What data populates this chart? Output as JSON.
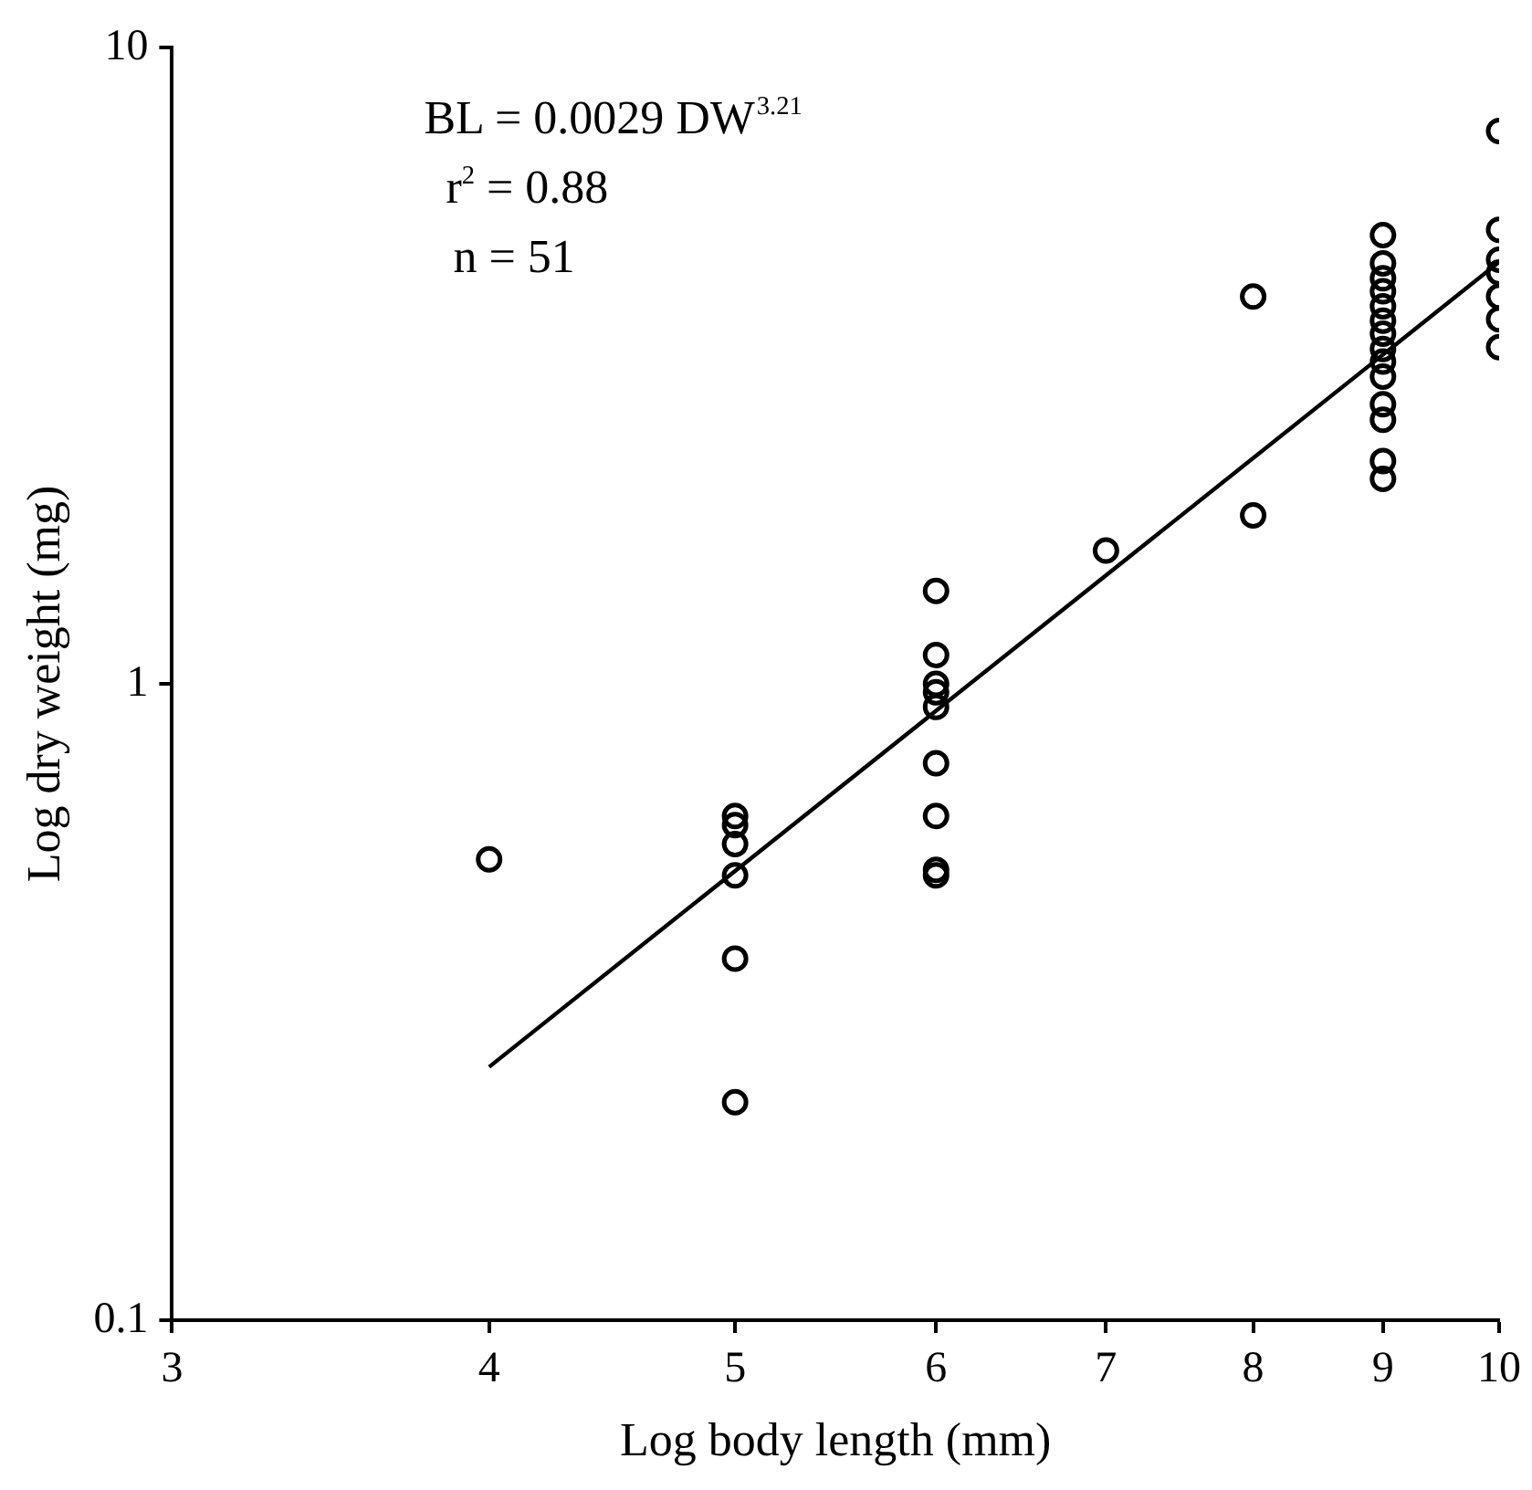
{
  "chart_data": {
    "type": "scatter",
    "xlabel": "Log body length (mm)",
    "ylabel": "Log dry weight (mg)",
    "log": "xy",
    "xlim": [
      3,
      10
    ],
    "xticks": [
      3,
      4,
      5,
      6,
      7,
      8,
      9,
      10
    ],
    "ylim": [
      0.1,
      10
    ],
    "yticks": [
      0.1,
      1,
      10
    ],
    "grid": false,
    "legend": false,
    "marker": "circle",
    "annotations": [
      "BL = 0.0029 DW$^{3.21}$",
      "r$^{2}$ = 0.88",
      "n = 51"
    ],
    "series": [
      {
        "color": "#000000",
        "x": [
          4,
          5,
          5,
          5,
          5,
          5,
          5,
          6,
          6,
          6,
          6,
          6,
          6,
          6,
          6,
          6,
          7,
          8,
          8,
          9,
          9,
          9,
          9,
          9,
          9,
          9,
          9,
          9,
          9,
          9,
          9,
          9,
          9,
          10,
          10,
          10,
          10,
          10,
          10,
          10
        ],
        "values": [
          0.53,
          0.62,
          0.6,
          0.56,
          0.5,
          0.37,
          0.22,
          1.4,
          1.11,
          1.0,
          0.97,
          0.92,
          0.75,
          0.62,
          0.51,
          0.5,
          1.62,
          4.06,
          1.84,
          5.07,
          4.58,
          4.34,
          4.14,
          3.92,
          3.72,
          3.55,
          3.36,
          3.21,
          3.04,
          2.75,
          2.6,
          2.24,
          2.1,
          7.39,
          5.17,
          4.64,
          4.43,
          4.06,
          3.74,
          3.38
        ]
      },
      {
        "type": "line",
        "color": "#000000",
        "x": [
          4,
          10
        ],
        "values": [
          0.25,
          4.6
        ],
        "marker": "none",
        "line_style": "solid"
      }
    ]
  }
}
